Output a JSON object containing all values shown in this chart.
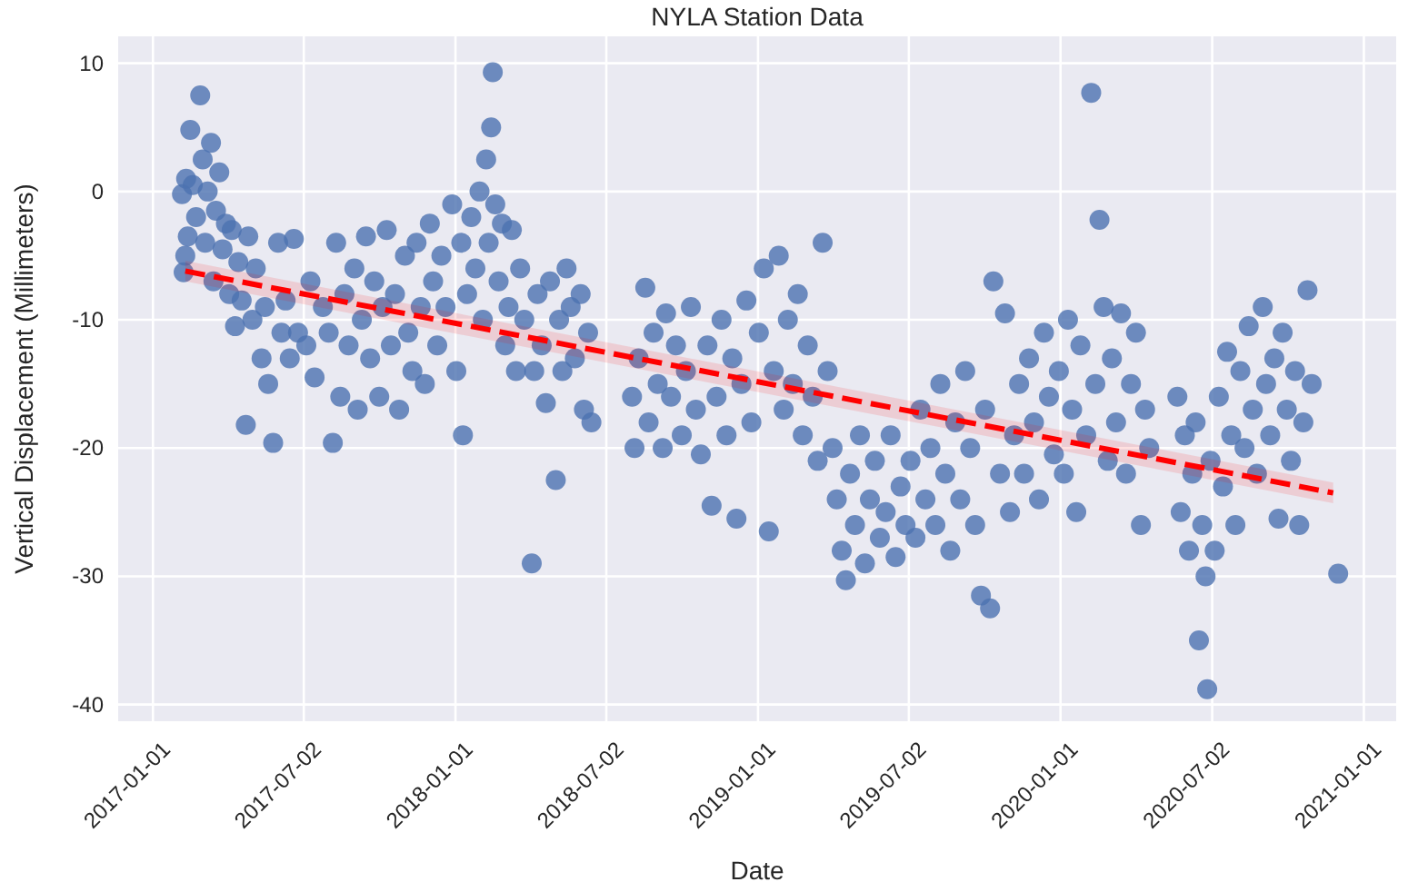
{
  "chart_data": {
    "type": "scatter",
    "title": "NYLA Station Data",
    "xlabel": "Date",
    "ylabel": "Vertical Displacement (Millimeters)",
    "grid": true,
    "xlim": [
      "2016-11-20",
      "2021-02-09"
    ],
    "xticks": [
      "2017-01-01",
      "2017-07-02",
      "2018-01-01",
      "2018-07-02",
      "2019-01-01",
      "2019-07-02",
      "2020-01-01",
      "2020-07-02",
      "2021-01-01"
    ],
    "ylim": [
      -41.3,
      12.1
    ],
    "yticks": [
      -40,
      -30,
      -20,
      -10,
      0,
      10
    ],
    "series": [
      {
        "marker": "circle",
        "color": "#4c72b0",
        "x": [
          "2017-02-05",
          "2017-02-07",
          "2017-02-09",
          "2017-02-10",
          "2017-02-12",
          "2017-02-15",
          "2017-02-18",
          "2017-02-22",
          "2017-02-27",
          "2017-03-02",
          "2017-03-05",
          "2017-03-08",
          "2017-03-12",
          "2017-03-15",
          "2017-03-18",
          "2017-03-22",
          "2017-03-26",
          "2017-03-30",
          "2017-04-03",
          "2017-04-06",
          "2017-04-10",
          "2017-04-14",
          "2017-04-18",
          "2017-04-23",
          "2017-04-26",
          "2017-05-01",
          "2017-05-05",
          "2017-05-12",
          "2017-05-16",
          "2017-05-20",
          "2017-05-26",
          "2017-06-01",
          "2017-06-05",
          "2017-06-10",
          "2017-06-15",
          "2017-06-20",
          "2017-06-25",
          "2017-07-05",
          "2017-07-10",
          "2017-07-15",
          "2017-07-25",
          "2017-08-01",
          "2017-08-06",
          "2017-08-10",
          "2017-08-15",
          "2017-08-20",
          "2017-08-25",
          "2017-09-01",
          "2017-09-05",
          "2017-09-10",
          "2017-09-15",
          "2017-09-20",
          "2017-09-25",
          "2017-10-01",
          "2017-10-05",
          "2017-10-10",
          "2017-10-15",
          "2017-10-20",
          "2017-10-25",
          "2017-11-01",
          "2017-11-05",
          "2017-11-10",
          "2017-11-15",
          "2017-11-20",
          "2017-11-25",
          "2017-12-01",
          "2017-12-05",
          "2017-12-10",
          "2017-12-15",
          "2017-12-20",
          "2017-12-28",
          "2018-01-02",
          "2018-01-10",
          "2018-01-08",
          "2018-01-15",
          "2018-01-20",
          "2018-01-25",
          "2018-01-30",
          "2018-02-03",
          "2018-02-07",
          "2018-02-10",
          "2018-02-13",
          "2018-02-15",
          "2018-02-18",
          "2018-02-22",
          "2018-02-26",
          "2018-03-02",
          "2018-03-06",
          "2018-03-10",
          "2018-03-15",
          "2018-03-20",
          "2018-03-25",
          "2018-04-03",
          "2018-04-06",
          "2018-04-10",
          "2018-04-15",
          "2018-04-20",
          "2018-04-25",
          "2018-05-02",
          "2018-05-06",
          "2018-05-10",
          "2018-05-15",
          "2018-05-20",
          "2018-05-25",
          "2018-06-01",
          "2018-06-05",
          "2018-06-10",
          "2018-06-14",
          "2018-08-02",
          "2018-08-05",
          "2018-08-10",
          "2018-08-18",
          "2018-08-22",
          "2018-08-28",
          "2018-09-02",
          "2018-09-08",
          "2018-09-12",
          "2018-09-18",
          "2018-09-24",
          "2018-10-01",
          "2018-10-06",
          "2018-10-12",
          "2018-10-18",
          "2018-10-24",
          "2018-11-01",
          "2018-11-06",
          "2018-11-12",
          "2018-11-18",
          "2018-11-24",
          "2018-12-01",
          "2018-12-06",
          "2018-12-12",
          "2018-12-18",
          "2018-12-24",
          "2019-01-02",
          "2019-01-08",
          "2019-01-14",
          "2019-01-20",
          "2019-01-26",
          "2019-02-01",
          "2019-02-06",
          "2019-02-12",
          "2019-02-18",
          "2019-02-24",
          "2019-03-02",
          "2019-03-08",
          "2019-03-14",
          "2019-03-20",
          "2019-03-26",
          "2019-04-01",
          "2019-04-06",
          "2019-04-12",
          "2019-04-17",
          "2019-04-22",
          "2019-04-28",
          "2019-05-04",
          "2019-05-10",
          "2019-05-16",
          "2019-05-22",
          "2019-05-28",
          "2019-06-04",
          "2019-06-10",
          "2019-06-16",
          "2019-06-22",
          "2019-06-28",
          "2019-07-04",
          "2019-07-10",
          "2019-07-16",
          "2019-07-22",
          "2019-07-28",
          "2019-08-03",
          "2019-08-09",
          "2019-08-15",
          "2019-08-21",
          "2019-08-27",
          "2019-09-02",
          "2019-09-08",
          "2019-09-14",
          "2019-09-20",
          "2019-09-27",
          "2019-10-02",
          "2019-10-08",
          "2019-10-12",
          "2019-10-20",
          "2019-10-26",
          "2019-11-01",
          "2019-11-06",
          "2019-11-12",
          "2019-11-18",
          "2019-11-24",
          "2019-11-30",
          "2019-12-06",
          "2019-12-12",
          "2019-12-18",
          "2019-12-24",
          "2019-12-30",
          "2020-01-05",
          "2020-01-10",
          "2020-01-15",
          "2020-01-20",
          "2020-01-25",
          "2020-02-01",
          "2020-02-07",
          "2020-02-12",
          "2020-02-17",
          "2020-02-22",
          "2020-02-27",
          "2020-03-03",
          "2020-03-08",
          "2020-03-14",
          "2020-03-20",
          "2020-03-26",
          "2020-04-01",
          "2020-04-07",
          "2020-04-12",
          "2020-04-17",
          "2020-05-21",
          "2020-05-25",
          "2020-05-30",
          "2020-06-04",
          "2020-06-08",
          "2020-06-12",
          "2020-06-16",
          "2020-06-20",
          "2020-06-24",
          "2020-06-26",
          "2020-06-30",
          "2020-07-05",
          "2020-07-10",
          "2020-07-15",
          "2020-07-20",
          "2020-07-25",
          "2020-07-30",
          "2020-08-05",
          "2020-08-10",
          "2020-08-15",
          "2020-08-20",
          "2020-08-25",
          "2020-09-01",
          "2020-09-05",
          "2020-09-10",
          "2020-09-15",
          "2020-09-20",
          "2020-09-25",
          "2020-09-30",
          "2020-10-05",
          "2020-10-10",
          "2020-10-15",
          "2020-10-20",
          "2020-10-25",
          "2020-10-30",
          "2020-12-01"
        ],
        "values": [
          -0.2,
          -6.3,
          -5,
          1,
          -3.5,
          4.8,
          0.5,
          -2,
          7.5,
          2.5,
          -4,
          0,
          3.8,
          -7,
          -1.5,
          1.5,
          -4.5,
          -2.5,
          -8,
          -3,
          -10.5,
          -5.5,
          -8.5,
          -18.2,
          -3.5,
          -10,
          -6,
          -13,
          -9,
          -15,
          -19.6,
          -4,
          -11,
          -8.5,
          -13,
          -3.7,
          -11,
          -12,
          -7,
          -14.5,
          -9,
          -11,
          -19.6,
          -4,
          -16,
          -8,
          -12,
          -6,
          -17,
          -10,
          -3.5,
          -13,
          -7,
          -16,
          -9,
          -3,
          -12,
          -8,
          -17,
          -5,
          -11,
          -14,
          -4,
          -9,
          -15,
          -2.5,
          -7,
          -12,
          -5,
          -9,
          -1,
          -14,
          -19,
          -4,
          -8,
          -2,
          -6,
          0,
          -10,
          2.5,
          -4,
          5,
          9.3,
          -1,
          -7,
          -2.5,
          -12,
          -9,
          -3,
          -14,
          -6,
          -10,
          -29,
          -14,
          -8,
          -12,
          -16.5,
          -7,
          -22.5,
          -10,
          -14,
          -6,
          -9,
          -13,
          -8,
          -17,
          -11,
          -18,
          -16,
          -20,
          -13,
          -7.5,
          -18,
          -11,
          -15,
          -20,
          -9.5,
          -16,
          -12,
          -19,
          -14,
          -9,
          -17,
          -20.5,
          -12,
          -24.5,
          -16,
          -10,
          -19,
          -13,
          -25.5,
          -15,
          -8.5,
          -18,
          -11,
          -6,
          -26.5,
          -14,
          -5,
          -17,
          -10,
          -15,
          -8,
          -19,
          -12,
          -16,
          -21,
          -4,
          -14,
          -20,
          -24,
          -28,
          -30.3,
          -22,
          -26,
          -19,
          -29,
          -24,
          -21,
          -27,
          -25,
          -19,
          -28.5,
          -23,
          -26,
          -21,
          -27,
          -17,
          -24,
          -20,
          -26,
          -15,
          -22,
          -28,
          -18,
          -24,
          -14,
          -20,
          -26,
          -31.5,
          -17,
          -32.5,
          -7,
          -22,
          -9.5,
          -25,
          -19,
          -15,
          -22,
          -13,
          -18,
          -24,
          -11,
          -16,
          -20.5,
          -14,
          -22,
          -10,
          -17,
          -25,
          -12,
          -19,
          7.7,
          -15,
          -2.2,
          -9,
          -21,
          -13,
          -18,
          -9.5,
          -22,
          -15,
          -11,
          -26,
          -17,
          -20,
          -16,
          -25,
          -19,
          -28,
          -22,
          -18,
          -35,
          -26,
          -30,
          -38.8,
          -21,
          -28,
          -16,
          -23,
          -12.5,
          -19,
          -26,
          -14,
          -20,
          -10.5,
          -17,
          -22,
          -9,
          -15,
          -19,
          -13,
          -25.5,
          -11,
          -17,
          -21,
          -14,
          -26,
          -18,
          -7.7,
          -15,
          -29.8
        ]
      },
      {
        "type": "line",
        "color": "#ff0000",
        "line_style": "dashed",
        "x": [
          "2017-02-09",
          "2020-11-25"
        ],
        "values": [
          -6.2,
          -23.5
        ],
        "lower": [
          -7,
          -24.3
        ],
        "upper": [
          -5.4,
          -22.7
        ]
      }
    ]
  }
}
